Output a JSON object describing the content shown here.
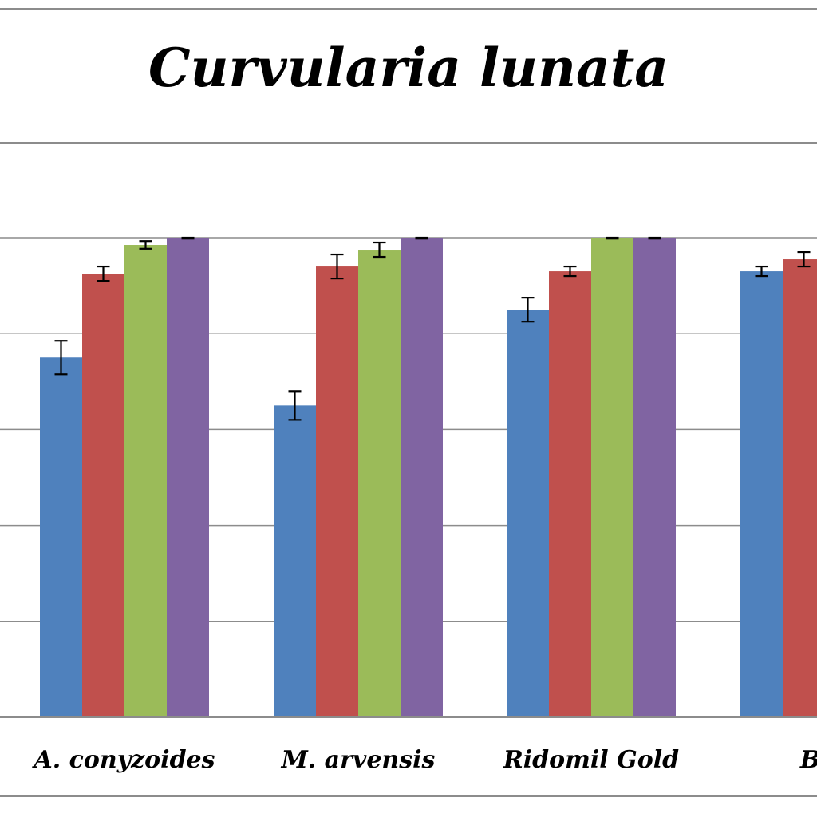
{
  "chart_data": {
    "type": "bar",
    "title": "Curvularia lunata",
    "xlabel": "",
    "ylabel": "",
    "ylim": [
      0,
      100
    ],
    "grid": true,
    "categories": [
      "A. conyzoides",
      "M. arvensis",
      "Ridomil Gold",
      "Bav"
    ],
    "series": [
      {
        "color": "#4f81bd",
        "values": [
          75,
          65,
          85,
          93
        ],
        "errors": [
          3.5,
          3,
          2.5,
          1
        ]
      },
      {
        "color": "#c0504d",
        "values": [
          92.5,
          94,
          93,
          95.5
        ],
        "errors": [
          1.5,
          2.5,
          1,
          1.5
        ]
      },
      {
        "color": "#9bbb59",
        "values": [
          98.5,
          97.5,
          100,
          null
        ],
        "errors": [
          0.8,
          1.5,
          0.2,
          null
        ]
      },
      {
        "color": "#8064a2",
        "values": [
          100,
          100,
          100,
          null
        ],
        "errors": [
          0.2,
          0.2,
          0.2,
          null
        ]
      }
    ]
  }
}
